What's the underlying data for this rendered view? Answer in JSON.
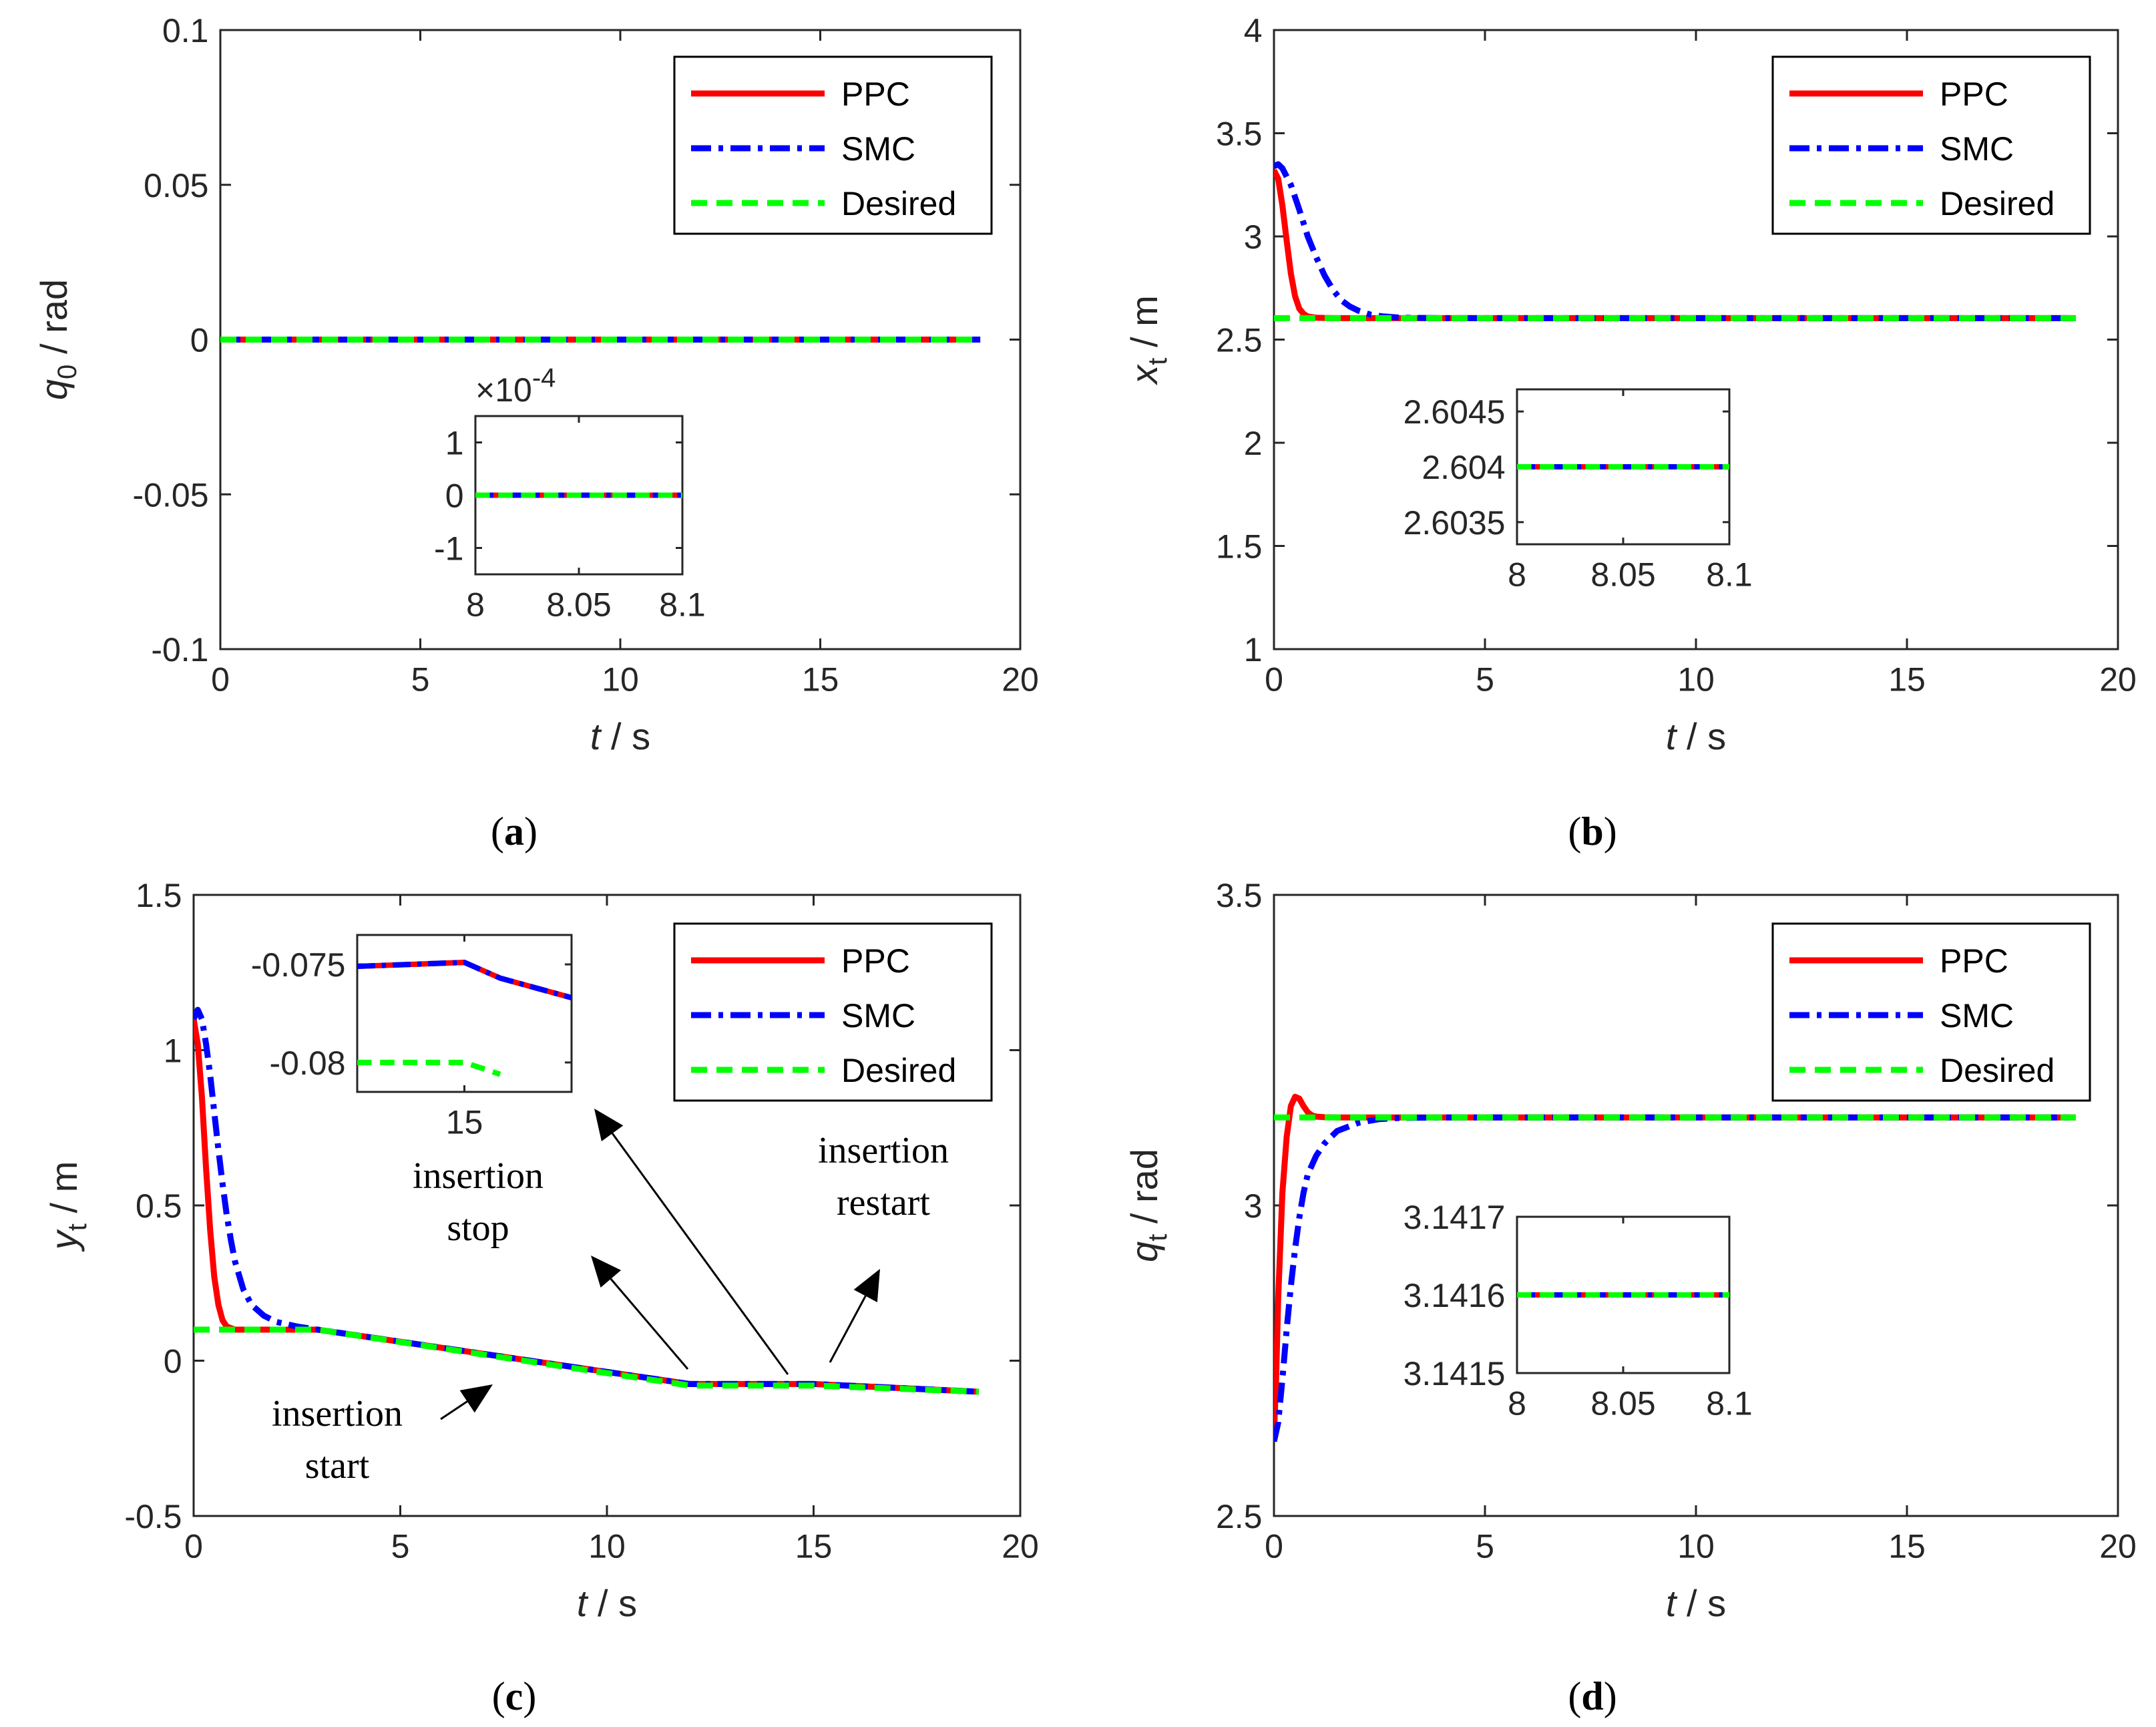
{
  "colors": {
    "ppc": "#ff0000",
    "smc": "#0000ff",
    "desired": "#00ff00",
    "axis": "#262626"
  },
  "legend": [
    "PPC",
    "SMC",
    "Desired"
  ],
  "chart_data": [
    {
      "type": "line",
      "caption": "(a)",
      "xlabel_var": "t",
      "xlabel_unit": " / s",
      "ylabel_var": "q",
      "ylabel_sub": "0",
      "ylabel_unit": " / rad",
      "xlim": [
        0,
        20
      ],
      "ylim": [
        -0.1,
        0.1
      ],
      "xticks": [
        0,
        5,
        10,
        15,
        20
      ],
      "xtick_labels": [
        "0",
        "5",
        "10",
        "15",
        "20"
      ],
      "yticks": [
        -0.1,
        -0.05,
        0,
        0.05,
        0.1
      ],
      "ytick_labels": [
        "-0.1",
        "-0.05",
        "0",
        "0.05",
        "0.1"
      ],
      "series": [
        {
          "name": "PPC",
          "x": [
            0,
            19
          ],
          "y": [
            0,
            0
          ]
        },
        {
          "name": "SMC",
          "x": [
            0,
            19
          ],
          "y": [
            0,
            0
          ]
        },
        {
          "name": "Desired",
          "x": [
            0,
            19
          ],
          "y": [
            0,
            0
          ]
        }
      ],
      "inset": {
        "xlim": [
          8,
          8.1
        ],
        "ylim": [
          -1.5,
          1.5
        ],
        "xticks": [
          8,
          8.05,
          8.1
        ],
        "xtick_labels": [
          "8",
          "8.05",
          "8.1"
        ],
        "yticks": [
          -1,
          0,
          1
        ],
        "ytick_labels": [
          "-1",
          "0",
          "1"
        ],
        "exponent_prefix": "×10",
        "exponent_power": "-4",
        "series": [
          {
            "name": "PPC",
            "x": [
              8,
              8.1
            ],
            "y": [
              0,
              0
            ]
          },
          {
            "name": "SMC",
            "x": [
              8,
              8.1
            ],
            "y": [
              0,
              0
            ]
          },
          {
            "name": "Desired",
            "x": [
              8,
              8.1
            ],
            "y": [
              0,
              0
            ]
          }
        ]
      }
    },
    {
      "type": "line",
      "caption": "(b)",
      "xlabel_var": "t",
      "xlabel_unit": " / s",
      "ylabel_var": "x",
      "ylabel_sub": "t",
      "ylabel_unit": " / m",
      "xlim": [
        0,
        20
      ],
      "ylim": [
        1,
        4
      ],
      "xticks": [
        0,
        5,
        10,
        15,
        20
      ],
      "xtick_labels": [
        "0",
        "5",
        "10",
        "15",
        "20"
      ],
      "yticks": [
        1,
        1.5,
        2,
        2.5,
        3,
        3.5,
        4
      ],
      "ytick_labels": [
        "1",
        "1.5",
        "2",
        "2.5",
        "3",
        "3.5",
        "4"
      ],
      "series": [
        {
          "name": "PPC",
          "x": [
            0,
            0.1,
            0.2,
            0.3,
            0.4,
            0.5,
            0.6,
            0.7,
            0.8,
            1.0,
            1.2,
            1.5,
            2,
            5,
            10,
            19
          ],
          "y": [
            3.32,
            3.28,
            3.15,
            2.98,
            2.82,
            2.71,
            2.65,
            2.625,
            2.612,
            2.606,
            2.605,
            2.604,
            2.604,
            2.604,
            2.604,
            2.604
          ]
        },
        {
          "name": "SMC",
          "x": [
            0,
            0.1,
            0.2,
            0.4,
            0.6,
            0.8,
            1.0,
            1.2,
            1.4,
            1.6,
            1.8,
            2.0,
            2.3,
            2.6,
            3.0,
            4,
            10,
            19
          ],
          "y": [
            3.34,
            3.35,
            3.33,
            3.25,
            3.13,
            3.0,
            2.9,
            2.81,
            2.74,
            2.69,
            2.66,
            2.64,
            2.62,
            2.612,
            2.606,
            2.604,
            2.604,
            2.604
          ]
        },
        {
          "name": "Desired",
          "x": [
            0,
            19
          ],
          "y": [
            2.604,
            2.604
          ]
        }
      ],
      "inset": {
        "xlim": [
          8,
          8.1
        ],
        "ylim": [
          2.6033,
          2.6047
        ],
        "xticks": [
          8,
          8.05,
          8.1
        ],
        "xtick_labels": [
          "8",
          "8.05",
          "8.1"
        ],
        "yticks": [
          2.6035,
          2.604,
          2.6045
        ],
        "ytick_labels": [
          "2.6035",
          "2.604",
          "2.6045"
        ],
        "series": [
          {
            "name": "PPC",
            "x": [
              8,
              8.1
            ],
            "y": [
              2.604,
              2.604
            ]
          },
          {
            "name": "SMC",
            "x": [
              8,
              8.1
            ],
            "y": [
              2.604,
              2.604
            ]
          },
          {
            "name": "Desired",
            "x": [
              8,
              8.1
            ],
            "y": [
              2.604,
              2.604
            ]
          }
        ]
      }
    },
    {
      "type": "line",
      "caption": "(c)",
      "xlabel_var": "t",
      "xlabel_unit": " / s",
      "ylabel_var": "y",
      "ylabel_sub": "t",
      "ylabel_unit": " / m",
      "xlim": [
        0,
        20
      ],
      "ylim": [
        -0.5,
        1.5
      ],
      "xticks": [
        0,
        5,
        10,
        15,
        20
      ],
      "xtick_labels": [
        "0",
        "5",
        "10",
        "15",
        "20"
      ],
      "yticks": [
        -0.5,
        0,
        0.5,
        1,
        1.5
      ],
      "ytick_labels": [
        "-0.5",
        "0",
        "0.5",
        "1",
        "1.5"
      ],
      "series": [
        {
          "name": "PPC",
          "x": [
            0,
            0.1,
            0.2,
            0.3,
            0.4,
            0.5,
            0.6,
            0.7,
            0.8,
            1.0,
            1.3,
            3,
            12,
            15,
            19
          ],
          "y": [
            1.1,
            1.02,
            0.85,
            0.62,
            0.42,
            0.27,
            0.18,
            0.13,
            0.11,
            0.1,
            0.1,
            0.1,
            -0.075,
            -0.075,
            -0.1
          ]
        },
        {
          "name": "SMC",
          "x": [
            0,
            0.1,
            0.2,
            0.3,
            0.4,
            0.5,
            0.6,
            0.7,
            0.8,
            0.9,
            1.0,
            1.2,
            1.4,
            1.7,
            2.0,
            2.5,
            3,
            12,
            15,
            19
          ],
          "y": [
            1.1,
            1.13,
            1.1,
            1.02,
            0.92,
            0.8,
            0.68,
            0.57,
            0.47,
            0.39,
            0.32,
            0.23,
            0.18,
            0.145,
            0.125,
            0.11,
            0.1,
            -0.075,
            -0.075,
            -0.1
          ]
        },
        {
          "name": "Desired",
          "x": [
            0,
            3,
            12,
            15,
            19
          ],
          "y": [
            0.1,
            0.1,
            -0.08,
            -0.08,
            -0.1
          ]
        }
      ],
      "annotations": [
        {
          "lines": [
            "insertion",
            "start"
          ]
        },
        {
          "lines": [
            "insertion",
            "stop"
          ]
        },
        {
          "lines": [
            "insertion",
            "restart"
          ]
        }
      ],
      "inset": {
        "xlim": [
          13.5,
          16.5
        ],
        "ylim": [
          -0.0815,
          -0.0735
        ],
        "xticks": [
          15
        ],
        "xtick_labels": [
          "15"
        ],
        "yticks": [
          -0.08,
          -0.075
        ],
        "ytick_labels": [
          "-0.08",
          "-0.075"
        ],
        "series": [
          {
            "name": "PPC",
            "x": [
              13.5,
              15,
              15.5,
              16.5
            ],
            "y": [
              -0.0751,
              -0.0749,
              -0.0757,
              -0.0767
            ]
          },
          {
            "name": "SMC",
            "x": [
              13.5,
              15,
              15.5,
              16.5
            ],
            "y": [
              -0.0751,
              -0.0749,
              -0.0757,
              -0.0767
            ]
          },
          {
            "name": "Desired",
            "x": [
              13.5,
              15,
              15.5
            ],
            "y": [
              -0.08,
              -0.08,
              -0.0806
            ]
          }
        ]
      }
    },
    {
      "type": "line",
      "caption": "(d)",
      "xlabel_var": "t",
      "xlabel_unit": " / s",
      "ylabel_var": "q",
      "ylabel_sub": "t",
      "ylabel_unit": " / rad",
      "xlim": [
        0,
        20
      ],
      "ylim": [
        2.5,
        3.5
      ],
      "xticks": [
        0,
        5,
        10,
        15,
        20
      ],
      "xtick_labels": [
        "0",
        "5",
        "10",
        "15",
        "20"
      ],
      "yticks": [
        2.5,
        3,
        3.5
      ],
      "ytick_labels": [
        "2.5",
        "3",
        "3.5"
      ],
      "series": [
        {
          "name": "PPC",
          "x": [
            0,
            0.05,
            0.1,
            0.2,
            0.3,
            0.4,
            0.5,
            0.6,
            0.7,
            0.8,
            0.9,
            1.0,
            1.2,
            1.5,
            2,
            5,
            19
          ],
          "y": [
            2.63,
            2.72,
            2.85,
            3.02,
            3.11,
            3.16,
            3.175,
            3.172,
            3.16,
            3.15,
            3.145,
            3.143,
            3.142,
            3.1416,
            3.1416,
            3.1416,
            3.1416
          ]
        },
        {
          "name": "SMC",
          "x": [
            0,
            0.1,
            0.2,
            0.3,
            0.4,
            0.5,
            0.6,
            0.7,
            0.8,
            1.0,
            1.2,
            1.5,
            2.0,
            2.5,
            3.0,
            4,
            19
          ],
          "y": [
            2.62,
            2.65,
            2.72,
            2.8,
            2.87,
            2.93,
            2.98,
            3.02,
            3.05,
            3.08,
            3.1,
            3.12,
            3.133,
            3.139,
            3.141,
            3.1416,
            3.1416
          ]
        },
        {
          "name": "Desired",
          "x": [
            0,
            19
          ],
          "y": [
            3.1416,
            3.1416
          ]
        }
      ],
      "inset": {
        "xlim": [
          8,
          8.1
        ],
        "ylim": [
          3.1415,
          3.1417
        ],
        "xticks": [
          8,
          8.05,
          8.1
        ],
        "xtick_labels": [
          "8",
          "8.05",
          "8.1"
        ],
        "yticks": [
          3.1415,
          3.1416,
          3.1417
        ],
        "ytick_labels": [
          "3.1415",
          "3.1416",
          "3.1417"
        ],
        "series": [
          {
            "name": "PPC",
            "x": [
              8,
              8.1
            ],
            "y": [
              3.1416,
              3.1416
            ]
          },
          {
            "name": "SMC",
            "x": [
              8,
              8.1
            ],
            "y": [
              3.1416,
              3.1416
            ]
          },
          {
            "name": "Desired",
            "x": [
              8,
              8.1
            ],
            "y": [
              3.1416,
              3.1416
            ]
          }
        ]
      }
    }
  ]
}
